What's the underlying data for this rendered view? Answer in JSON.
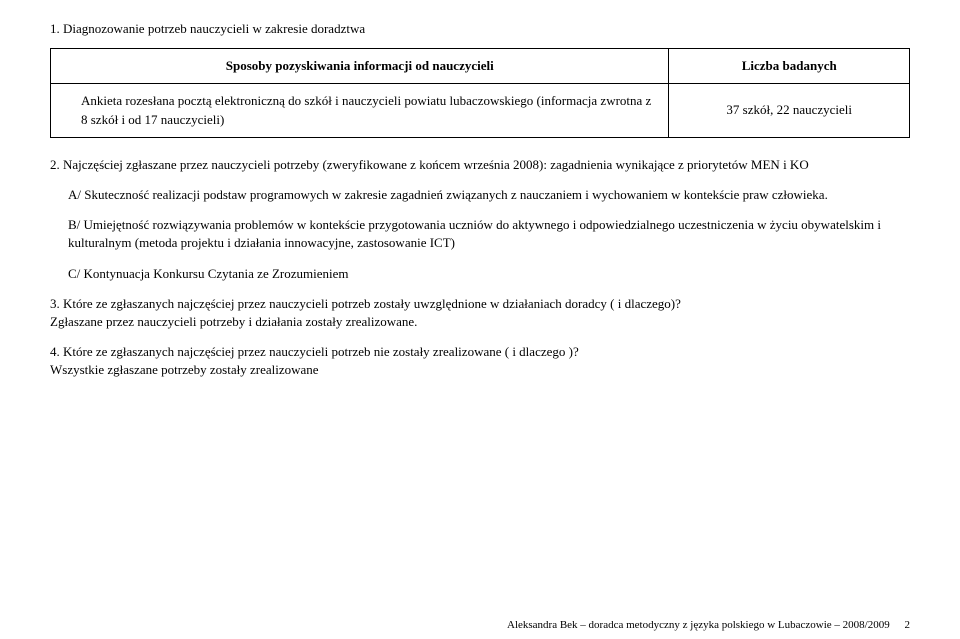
{
  "section1": {
    "heading": "1.   Diagnozowanie potrzeb nauczycieli w zakresie doradztwa",
    "table": {
      "header_left": "Sposoby pozyskiwania informacji od nauczycieli",
      "header_right": "Liczba badanych",
      "row_left": "Ankieta rozesłana pocztą elektroniczną do szkół i nauczycieli powiatu lubaczowskiego (informacja zwrotna z 8 szkół i od 17 nauczycieli)",
      "row_right": "37 szkół, 22 nauczycieli"
    }
  },
  "section2": {
    "heading": "2.   Najczęściej zgłaszane przez nauczycieli potrzeby (zweryfikowane z końcem września 2008): zagadnienia wynikające z priorytetów MEN i KO",
    "a": "A/ Skuteczność realizacji podstaw programowych w zakresie zagadnień związanych z nauczaniem i wychowaniem w kontekście praw człowieka.",
    "b": "B/ Umiejętność rozwiązywania problemów w kontekście  przygotowania uczniów do aktywnego i odpowiedzialnego uczestniczenia w życiu obywatelskim i kulturalnym (metoda projektu i działania innowacyjne, zastosowanie ICT)",
    "c": "C/ Kontynuacja Konkursu Czytania ze Zrozumieniem"
  },
  "section3": {
    "q": "3.   Które ze zgłaszanych najczęściej przez nauczycieli potrzeb zostały uwzględnione w działaniach doradcy  ( i dlaczego)?",
    "a": "Zgłaszane przez nauczycieli potrzeby i działania zostały zrealizowane."
  },
  "section4": {
    "q": "4.   Które ze zgłaszanych najczęściej przez nauczycieli potrzeb nie zostały zrealizowane ( i dlaczego )?",
    "a": "Wszystkie zgłaszane potrzeby zostały zrealizowane"
  },
  "footer": {
    "text": "Aleksandra Bek – doradca metodyczny z języka polskiego w Lubaczowie – 2008/2009",
    "page": "2"
  }
}
